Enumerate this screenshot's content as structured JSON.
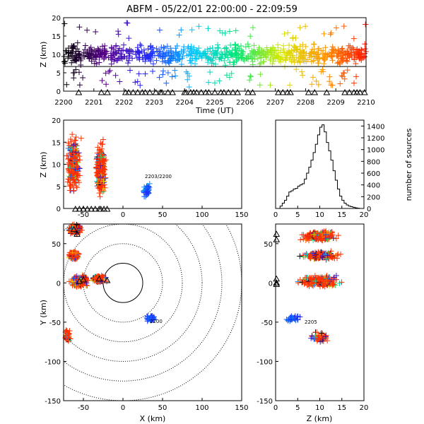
{
  "title": "ABFM - 05/22/01 22:00:00 - 22:09:59",
  "colors": {
    "frame": "#000000",
    "spectrum": [
      "#000000",
      "#5a0090",
      "#1e2cff",
      "#00c8ff",
      "#00e676",
      "#d4ea00",
      "#ff9800",
      "#ff1400"
    ],
    "station": "#000000"
  },
  "chart_data": [
    {
      "id": "time-height",
      "type": "scatter",
      "xlabel": "Time (UT)",
      "ylabel": "Z (km)",
      "xticks": [
        "2200",
        "2201",
        "2202",
        "2203",
        "2204",
        "2205",
        "2206",
        "2207",
        "2208",
        "2209",
        "2210"
      ],
      "yticks": [
        "0",
        "5",
        "10",
        "15",
        "20"
      ],
      "xlim": [
        0,
        10
      ],
      "ylim": [
        0,
        20
      ],
      "reference_line_z": 6.7,
      "color_by": "time",
      "marker": "plus",
      "bulk_source_layer_km": [
        5,
        15
      ],
      "station_markers_time": [
        0.5,
        1.25,
        1.45,
        2.05,
        2.15,
        2.3,
        2.45,
        2.6,
        2.7,
        2.85,
        3.05,
        3.2,
        3.25,
        3.45,
        3.6,
        4.0,
        4.05,
        4.2,
        4.3,
        4.4,
        4.55,
        4.7,
        4.8,
        5.0,
        5.2,
        5.3,
        5.45,
        5.6,
        5.75,
        6.1,
        6.25,
        7.1,
        7.25,
        7.4,
        7.5,
        8.1,
        8.3,
        8.7,
        9.3,
        9.45,
        9.6,
        9.7,
        9.8,
        9.95
      ]
    },
    {
      "id": "x-height",
      "type": "scatter",
      "xlabel": "",
      "ylabel": "Z (km)",
      "xticks": [
        "-50",
        "0",
        "50",
        "100",
        "150"
      ],
      "yticks": [
        "0",
        "5",
        "10",
        "15",
        "20"
      ],
      "xlim": [
        -75,
        150
      ],
      "ylim": [
        0,
        20
      ],
      "annotation": "2203/2200",
      "clusters": [
        {
          "x": -62,
          "z": 10,
          "spread_x": 10,
          "spread_z": 8
        },
        {
          "x": -28,
          "z": 9,
          "spread_x": 8,
          "spread_z": 7
        },
        {
          "x": 30,
          "z": 4,
          "spread_x": 6,
          "spread_z": 2
        }
      ]
    },
    {
      "id": "height-histogram",
      "type": "bar",
      "xlabel": "",
      "ylabel": "number of sources",
      "xticks": [
        "0",
        "5",
        "10",
        "15",
        "20"
      ],
      "yticks": [
        "0",
        "200",
        "400",
        "600",
        "800",
        "1000",
        "1200",
        "1400"
      ],
      "xlim": [
        0,
        20
      ],
      "ylim": [
        0,
        1500
      ],
      "bin_width_km": 0.5,
      "bins_start": [
        1.0,
        1.5,
        2.0,
        2.5,
        3.0,
        3.5,
        4.0,
        4.5,
        5.0,
        5.5,
        6.0,
        6.5,
        7.0,
        7.5,
        8.0,
        8.5,
        9.0,
        9.5,
        10.0,
        10.5,
        11.0,
        11.5,
        12.0,
        12.5,
        13.0,
        13.5,
        14.0,
        14.5,
        15.0,
        15.5,
        16.0,
        16.5,
        17.0,
        17.5,
        18.0,
        18.5
      ],
      "values": [
        40,
        90,
        140,
        210,
        280,
        300,
        330,
        340,
        380,
        400,
        420,
        500,
        600,
        700,
        820,
        950,
        1090,
        1250,
        1380,
        1420,
        1300,
        1120,
        980,
        820,
        640,
        480,
        330,
        210,
        140,
        90,
        60,
        40,
        30,
        20,
        10,
        5
      ]
    },
    {
      "id": "plan-view",
      "type": "scatter",
      "xlabel": "X (km)",
      "ylabel": "Y (km)",
      "xticks": [
        "-50",
        "0",
        "50",
        "100",
        "150"
      ],
      "yticks": [
        "-150",
        "-100",
        "-50",
        "0",
        "50"
      ],
      "xlim": [
        -75,
        150
      ],
      "ylim": [
        -150,
        75
      ],
      "range_rings_km": [
        25,
        50,
        75,
        100,
        125,
        150
      ],
      "annotation": "2200",
      "clusters": [
        {
          "x": -60,
          "y": 68,
          "spread_x": 10,
          "spread_y": 8
        },
        {
          "x": -62,
          "y": 35,
          "spread_x": 8,
          "spread_y": 6
        },
        {
          "x": -55,
          "y": 2,
          "spread_x": 14,
          "spread_y": 9
        },
        {
          "x": -30,
          "y": 5,
          "spread_x": 10,
          "spread_y": 6
        },
        {
          "x": 35,
          "y": -45,
          "spread_x": 7,
          "spread_y": 5
        },
        {
          "x": -70,
          "y": -68,
          "spread_x": 5,
          "spread_y": 10
        }
      ]
    },
    {
      "id": "height-y",
      "type": "scatter",
      "xlabel": "Z (km)",
      "ylabel": "",
      "xticks": [
        "0",
        "5",
        "10",
        "15",
        "20"
      ],
      "yticks": [
        "-150",
        "-100",
        "-50",
        "0",
        "50"
      ],
      "xlim": [
        0,
        20
      ],
      "ylim": [
        -150,
        75
      ],
      "annotation": "2205",
      "clusters": [
        {
          "z": 10,
          "y": 60,
          "spread_z": 5,
          "spread_y": 8
        },
        {
          "z": 10,
          "y": 35,
          "spread_z": 5,
          "spread_y": 6
        },
        {
          "z": 10,
          "y": 2,
          "spread_z": 6,
          "spread_y": 9
        },
        {
          "z": 4,
          "y": -45,
          "spread_z": 2,
          "spread_y": 5
        },
        {
          "z": 10,
          "y": -70,
          "spread_z": 3,
          "spread_y": 8
        }
      ]
    }
  ]
}
